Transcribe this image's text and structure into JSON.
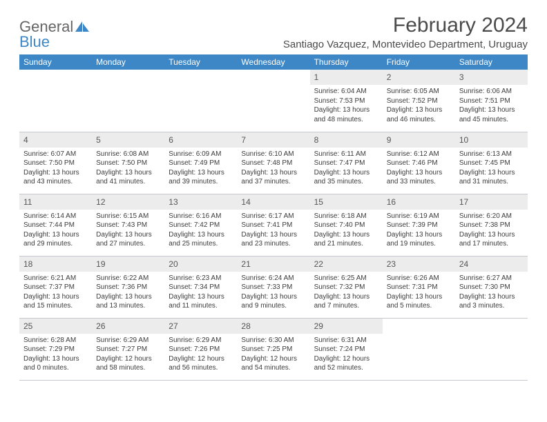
{
  "logo": {
    "word1": "General",
    "word2": "Blue",
    "sail_color": "#3d87c7"
  },
  "header": {
    "title": "February 2024",
    "subtitle": "Santiago Vazquez, Montevideo Department, Uruguay"
  },
  "colors": {
    "header_bar": "#3d87c7",
    "daynum_bg": "#ececec",
    "border": "#c5c8cc"
  },
  "weekday_labels": [
    "Sunday",
    "Monday",
    "Tuesday",
    "Wednesday",
    "Thursday",
    "Friday",
    "Saturday"
  ],
  "weeks": [
    [
      null,
      null,
      null,
      null,
      {
        "n": "1",
        "sr": "6:04 AM",
        "ss": "7:53 PM",
        "dl": "13 hours and 48 minutes."
      },
      {
        "n": "2",
        "sr": "6:05 AM",
        "ss": "7:52 PM",
        "dl": "13 hours and 46 minutes."
      },
      {
        "n": "3",
        "sr": "6:06 AM",
        "ss": "7:51 PM",
        "dl": "13 hours and 45 minutes."
      }
    ],
    [
      {
        "n": "4",
        "sr": "6:07 AM",
        "ss": "7:50 PM",
        "dl": "13 hours and 43 minutes."
      },
      {
        "n": "5",
        "sr": "6:08 AM",
        "ss": "7:50 PM",
        "dl": "13 hours and 41 minutes."
      },
      {
        "n": "6",
        "sr": "6:09 AM",
        "ss": "7:49 PM",
        "dl": "13 hours and 39 minutes."
      },
      {
        "n": "7",
        "sr": "6:10 AM",
        "ss": "7:48 PM",
        "dl": "13 hours and 37 minutes."
      },
      {
        "n": "8",
        "sr": "6:11 AM",
        "ss": "7:47 PM",
        "dl": "13 hours and 35 minutes."
      },
      {
        "n": "9",
        "sr": "6:12 AM",
        "ss": "7:46 PM",
        "dl": "13 hours and 33 minutes."
      },
      {
        "n": "10",
        "sr": "6:13 AM",
        "ss": "7:45 PM",
        "dl": "13 hours and 31 minutes."
      }
    ],
    [
      {
        "n": "11",
        "sr": "6:14 AM",
        "ss": "7:44 PM",
        "dl": "13 hours and 29 minutes."
      },
      {
        "n": "12",
        "sr": "6:15 AM",
        "ss": "7:43 PM",
        "dl": "13 hours and 27 minutes."
      },
      {
        "n": "13",
        "sr": "6:16 AM",
        "ss": "7:42 PM",
        "dl": "13 hours and 25 minutes."
      },
      {
        "n": "14",
        "sr": "6:17 AM",
        "ss": "7:41 PM",
        "dl": "13 hours and 23 minutes."
      },
      {
        "n": "15",
        "sr": "6:18 AM",
        "ss": "7:40 PM",
        "dl": "13 hours and 21 minutes."
      },
      {
        "n": "16",
        "sr": "6:19 AM",
        "ss": "7:39 PM",
        "dl": "13 hours and 19 minutes."
      },
      {
        "n": "17",
        "sr": "6:20 AM",
        "ss": "7:38 PM",
        "dl": "13 hours and 17 minutes."
      }
    ],
    [
      {
        "n": "18",
        "sr": "6:21 AM",
        "ss": "7:37 PM",
        "dl": "13 hours and 15 minutes."
      },
      {
        "n": "19",
        "sr": "6:22 AM",
        "ss": "7:36 PM",
        "dl": "13 hours and 13 minutes."
      },
      {
        "n": "20",
        "sr": "6:23 AM",
        "ss": "7:34 PM",
        "dl": "13 hours and 11 minutes."
      },
      {
        "n": "21",
        "sr": "6:24 AM",
        "ss": "7:33 PM",
        "dl": "13 hours and 9 minutes."
      },
      {
        "n": "22",
        "sr": "6:25 AM",
        "ss": "7:32 PM",
        "dl": "13 hours and 7 minutes."
      },
      {
        "n": "23",
        "sr": "6:26 AM",
        "ss": "7:31 PM",
        "dl": "13 hours and 5 minutes."
      },
      {
        "n": "24",
        "sr": "6:27 AM",
        "ss": "7:30 PM",
        "dl": "13 hours and 3 minutes."
      }
    ],
    [
      {
        "n": "25",
        "sr": "6:28 AM",
        "ss": "7:29 PM",
        "dl": "13 hours and 0 minutes."
      },
      {
        "n": "26",
        "sr": "6:29 AM",
        "ss": "7:27 PM",
        "dl": "12 hours and 58 minutes."
      },
      {
        "n": "27",
        "sr": "6:29 AM",
        "ss": "7:26 PM",
        "dl": "12 hours and 56 minutes."
      },
      {
        "n": "28",
        "sr": "6:30 AM",
        "ss": "7:25 PM",
        "dl": "12 hours and 54 minutes."
      },
      {
        "n": "29",
        "sr": "6:31 AM",
        "ss": "7:24 PM",
        "dl": "12 hours and 52 minutes."
      },
      null,
      null
    ]
  ],
  "labels": {
    "sunrise": "Sunrise:",
    "sunset": "Sunset:",
    "daylight": "Daylight:"
  }
}
